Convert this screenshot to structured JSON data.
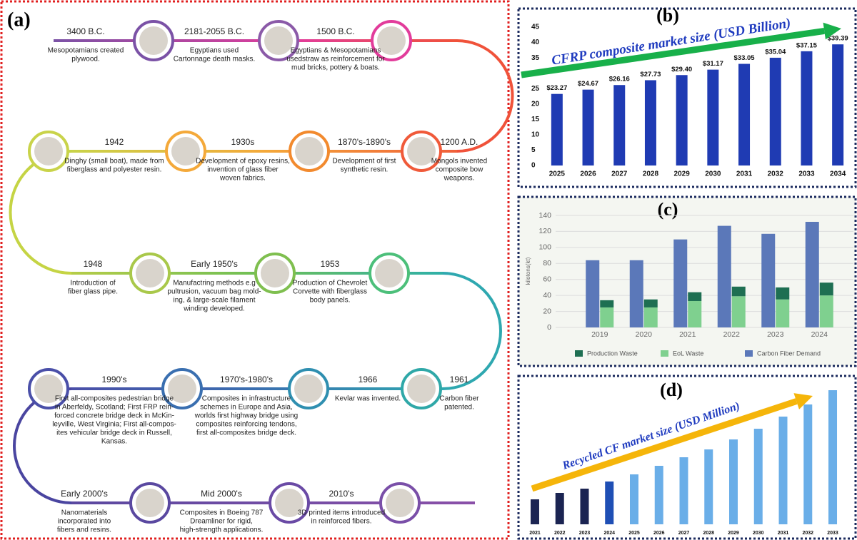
{
  "timeline": {
    "label": "(a)",
    "events": [
      {
        "date": "3400 B.C.",
        "lines": [
          "Mesopotamians created",
          "plywood."
        ]
      },
      {
        "date": "2181-2055 B.C.",
        "lines": [
          "Egyptians used",
          "Cartonnage death masks."
        ]
      },
      {
        "date": "1500 B.C.",
        "lines": [
          "Egyptians & Mesopotamians",
          "usedstraw as reinforcement for",
          "mud bricks, pottery & boats."
        ]
      },
      {
        "date": "1200 A.D.",
        "lines": [
          "Mongols invented",
          "composite bow",
          "weapons."
        ]
      },
      {
        "date": "1870's-1890's",
        "lines": [
          "Development of first",
          "synthetic resin."
        ]
      },
      {
        "date": "1930s",
        "lines": [
          "Development of epoxy resins,",
          "invention of glass fiber",
          "woven fabrics."
        ]
      },
      {
        "date": "1942",
        "lines": [
          "Dinghy (small boat), made from",
          "fiberglass and polyester resin."
        ]
      },
      {
        "date": "1948",
        "lines": [
          "Introduction of",
          "fiber glass pipe."
        ]
      },
      {
        "date": "Early 1950's",
        "lines": [
          "Manufactring methods e.g",
          "pultrusion, vacuum bag mold-",
          "ing, & large-scale  filament",
          "winding developed."
        ]
      },
      {
        "date": "1953",
        "lines": [
          "Production of Chevrolet",
          "Corvette with fiberglass",
          "body panels."
        ]
      },
      {
        "date": "1961",
        "lines": [
          "Carbon fiber",
          "patented."
        ]
      },
      {
        "date": "1966",
        "lines": [
          "Kevlar was invented."
        ]
      },
      {
        "date": "1970's-1980's",
        "lines": [
          "Composites in infrastructure",
          "schemes in Europe and Asia,",
          "worlds first highway bridge using",
          "composites reinforcing tendons,",
          "first all-composites bridge deck."
        ]
      },
      {
        "date": "1990's",
        "lines": [
          "First all-composites pedestrian bridge",
          "in Aberfeldy, Scotland; First FRP rein-",
          "forced concrete bridge deck in McKin-",
          "leyville, West Virginia; First all-compos-",
          "ites vehicular bridge deck in Russell,",
          "Kansas."
        ]
      },
      {
        "date": "Early 2000's",
        "lines": [
          "Nanomaterials",
          "incorporated into",
          "fibers and resins."
        ]
      },
      {
        "date": "Mid 2000's",
        "lines": [
          "Composites in Boeing 787",
          "Dreamliner for rigid,",
          "high-strength applications."
        ]
      },
      {
        "date": "2010's",
        "lines": [
          "3D printed items introduced",
          "in reinforced fibers."
        ]
      }
    ]
  },
  "chart_data": [
    {
      "type": "bar",
      "label": "(b)",
      "title": "CFRP composite market size (USD Billion)",
      "categories": [
        "2025",
        "2026",
        "2027",
        "2028",
        "2029",
        "2030",
        "2031",
        "2032",
        "2033",
        "2034"
      ],
      "values": [
        23.27,
        24.67,
        26.16,
        27.73,
        29.4,
        31.17,
        33.05,
        35.04,
        37.15,
        39.39
      ],
      "value_labels": [
        "$23.27",
        "$24.67",
        "$26.16",
        "$27.73",
        "$29.40",
        "$31.17",
        "$33.05",
        "$35.04",
        "$37.15",
        "$39.39"
      ],
      "color": "#1f3bb3",
      "arrow_color": "#18b04a",
      "ylim": [
        0,
        45
      ],
      "yticks": [
        0,
        5,
        10,
        15,
        20,
        25,
        30,
        35,
        40,
        45
      ]
    },
    {
      "type": "grouped-stacked-bar",
      "label": "(c)",
      "y_label": "kilotons(kt)",
      "categories": [
        "2019",
        "2020",
        "2021",
        "2022",
        "2023",
        "2024"
      ],
      "series": [
        {
          "name": "Production Waste",
          "color": "#1e6f52",
          "stack": "waste",
          "values": [
            9,
            10,
            11,
            12,
            15,
            16
          ]
        },
        {
          "name": "EoL Waste",
          "color": "#7fd08f",
          "stack": "waste",
          "values": [
            25,
            25,
            33,
            39,
            35,
            40
          ]
        },
        {
          "name": "Carbon Fiber Demand",
          "color": "#5b78b9",
          "stack": "demand",
          "values": [
            84,
            84,
            110,
            127,
            117,
            132
          ]
        }
      ],
      "ylim": [
        0,
        140
      ],
      "yticks": [
        0,
        20,
        40,
        60,
        80,
        100,
        120,
        140
      ],
      "grid": true
    },
    {
      "type": "bar",
      "label": "(d)",
      "title": "Recycled CF market size (USD Million)",
      "categories": [
        "2021",
        "2022",
        "2023",
        "2024",
        "2025",
        "2026",
        "2027",
        "2028",
        "2029",
        "2030",
        "2031",
        "2032",
        "2033"
      ],
      "values": [
        35,
        44,
        50,
        60,
        70,
        82,
        94,
        105,
        119,
        134,
        151,
        168,
        188
      ],
      "colors": [
        "#1b2452",
        "#1b2452",
        "#1b2452",
        "#1f4fb5",
        "#6aaee8",
        "#6aaee8",
        "#6aaee8",
        "#6aaee8",
        "#6aaee8",
        "#6aaee8",
        "#6aaee8",
        "#6aaee8",
        "#6aaee8"
      ],
      "arrow_color": "#f5b50a"
    }
  ]
}
